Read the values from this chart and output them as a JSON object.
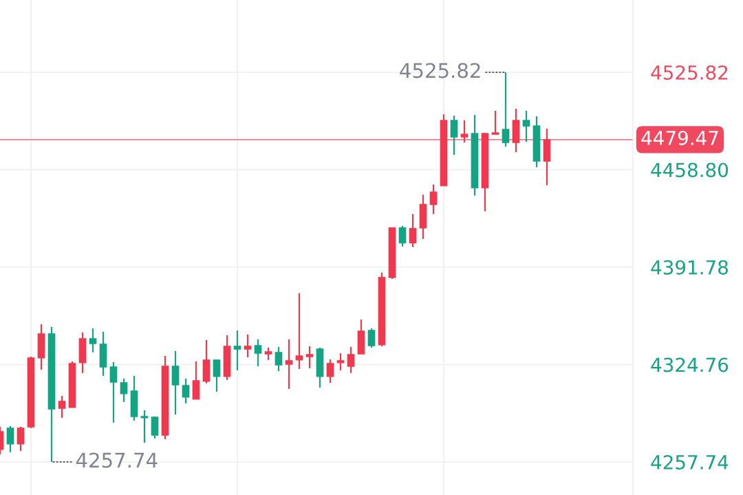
{
  "chart_data": {
    "type": "candlestick",
    "categories": [
      null,
      null,
      null,
      null,
      null,
      null,
      null,
      null,
      null,
      null,
      null,
      null,
      null,
      null,
      null,
      null,
      null,
      null,
      null,
      null,
      null,
      null,
      null,
      null,
      null,
      null,
      null,
      null,
      null,
      null,
      null,
      null,
      null,
      null,
      null,
      null,
      null,
      null,
      null,
      null,
      null,
      null,
      null,
      null,
      null,
      null,
      null,
      null,
      null,
      null,
      null,
      null,
      null,
      null
    ],
    "ohlc": [
      [
        4266.3,
        4281.9,
        4263.0,
        4278.6
      ],
      [
        4281.0,
        4282.4,
        4264.4,
        4270.1
      ],
      [
        4270.1,
        4281.9,
        4265.3,
        4281.0
      ],
      [
        4281.9,
        4330.2,
        4281.0,
        4329.3
      ],
      [
        4329.3,
        4352.5,
        4321.2,
        4345.9
      ],
      [
        4345.9,
        4350.6,
        4257.74,
        4294.2
      ],
      [
        4294.7,
        4303.2,
        4288.1,
        4299.4
      ],
      [
        4295.2,
        4326.9,
        4295.2,
        4325.5
      ],
      [
        4326.0,
        4346.8,
        4318.9,
        4342.5
      ],
      [
        4342.5,
        4349.6,
        4333.1,
        4339.2
      ],
      [
        4338.8,
        4347.3,
        4317.0,
        4323.1
      ],
      [
        4323.1,
        4326.4,
        4284.8,
        4312.7
      ],
      [
        4312.2,
        4315.1,
        4299.0,
        4304.7
      ],
      [
        4306.5,
        4317.0,
        4286.2,
        4289.0
      ],
      [
        4289.0,
        4293.3,
        4271.0,
        4288.1
      ],
      [
        4288.5,
        4289.0,
        4273.9,
        4276.2
      ],
      [
        4276.2,
        4330.7,
        4273.4,
        4323.6
      ],
      [
        4323.6,
        4334.0,
        4290.4,
        4310.8
      ],
      [
        4310.3,
        4315.1,
        4298.0,
        4302.3
      ],
      [
        4300.9,
        4326.9,
        4300.9,
        4313.6
      ],
      [
        4313.2,
        4341.6,
        4311.8,
        4327.9
      ],
      [
        4327.9,
        4327.9,
        4306.1,
        4316.5
      ],
      [
        4316.5,
        4344.9,
        4314.1,
        4337.3
      ],
      [
        4337.3,
        4348.2,
        4320.8,
        4335.4
      ],
      [
        4335.4,
        4345.4,
        4329.8,
        4337.3
      ],
      [
        4337.8,
        4342.1,
        4323.6,
        4332.6
      ],
      [
        4332.1,
        4336.4,
        4327.9,
        4333.5
      ],
      [
        4333.1,
        4336.9,
        4320.3,
        4324.5
      ],
      [
        4325.0,
        4342.1,
        4308.0,
        4327.4
      ],
      [
        4327.9,
        4373.8,
        4321.7,
        4330.7
      ],
      [
        4330.2,
        4337.3,
        4322.2,
        4331.6
      ],
      [
        4335.4,
        4336.4,
        4308.9,
        4316.5
      ],
      [
        4316.5,
        4328.3,
        4312.2,
        4325.5
      ],
      [
        4326.0,
        4332.6,
        4320.8,
        4327.4
      ],
      [
        4323.6,
        4336.9,
        4318.9,
        4331.6
      ],
      [
        4332.1,
        4355.8,
        4332.1,
        4347.8
      ],
      [
        4348.2,
        4349.6,
        4336.4,
        4337.8
      ],
      [
        4338.3,
        4388.0,
        4337.3,
        4384.7
      ],
      [
        4384.7,
        4418.8,
        4383.7,
        4418.8
      ],
      [
        4418.8,
        4420.2,
        4406.0,
        4408.4
      ],
      [
        4408.4,
        4428.3,
        4405.5,
        4418.3
      ],
      [
        4418.8,
        4441.5,
        4411.2,
        4434.9
      ],
      [
        4434.9,
        4448.6,
        4428.3,
        4443.4
      ],
      [
        4447.7,
        4496.9,
        4447.7,
        4492.7
      ],
      [
        4492.7,
        4496.0,
        4469.0,
        4481.3
      ],
      [
        4481.3,
        4492.7,
        4477.5,
        4483.2
      ],
      [
        4483.7,
        4496.5,
        4441.0,
        4446.3
      ],
      [
        4446.3,
        4484.2,
        4430.2,
        4483.7
      ],
      [
        4483.2,
        4499.3,
        4483.2,
        4484.2
      ],
      [
        4486.5,
        4525.82,
        4474.7,
        4477.5
      ],
      [
        4477.5,
        4500.7,
        4470.9,
        4492.7
      ],
      [
        4492.7,
        4499.3,
        4478.0,
        4488.9
      ],
      [
        4488.9,
        4495.5,
        4460.5,
        4464.7
      ],
      [
        4464.7,
        4487.0,
        4448.2,
        4479.47
      ]
    ],
    "colors": [
      "#f0384f",
      "#14a383",
      "#f0384f",
      "#f0384f",
      "#f0384f",
      "#14a383",
      "#f0384f",
      "#f0384f",
      "#f0384f",
      "#14a383",
      "#14a383",
      "#14a383",
      "#14a383",
      "#14a383",
      "#14a383",
      "#14a383",
      "#f0384f",
      "#14a383",
      "#14a383",
      "#f0384f",
      "#f0384f",
      "#14a383",
      "#f0384f",
      "#14a383",
      "#f0384f",
      "#14a383",
      "#f0384f",
      "#14a383",
      "#f0384f",
      "#f0384f",
      "#f0384f",
      "#14a383",
      "#f0384f",
      "#f0384f",
      "#f0384f",
      "#f0384f",
      "#14a383",
      "#f0384f",
      "#f0384f",
      "#14a383",
      "#f0384f",
      "#f0384f",
      "#f0384f",
      "#f0384f",
      "#14a383",
      "#f0384f",
      "#14a383",
      "#f0384f",
      "#f0384f",
      "#14a383",
      "#f0384f",
      "#14a383",
      "#14a383",
      "#f0384f"
    ],
    "ylim": [
      4235.0,
      4575.55
    ],
    "yticks": [
      4257.74,
      4324.76,
      4391.78,
      {
        "value": 4458.8,
        "label": "4458.80"
      },
      4525.82
    ],
    "grid": true,
    "ref_lines": [
      {
        "axis": "y",
        "value": 4479.47,
        "label": "4479.47",
        "color": "#f0485e"
      }
    ],
    "annotations": [
      "4525.82",
      "4257.74"
    ]
  }
}
